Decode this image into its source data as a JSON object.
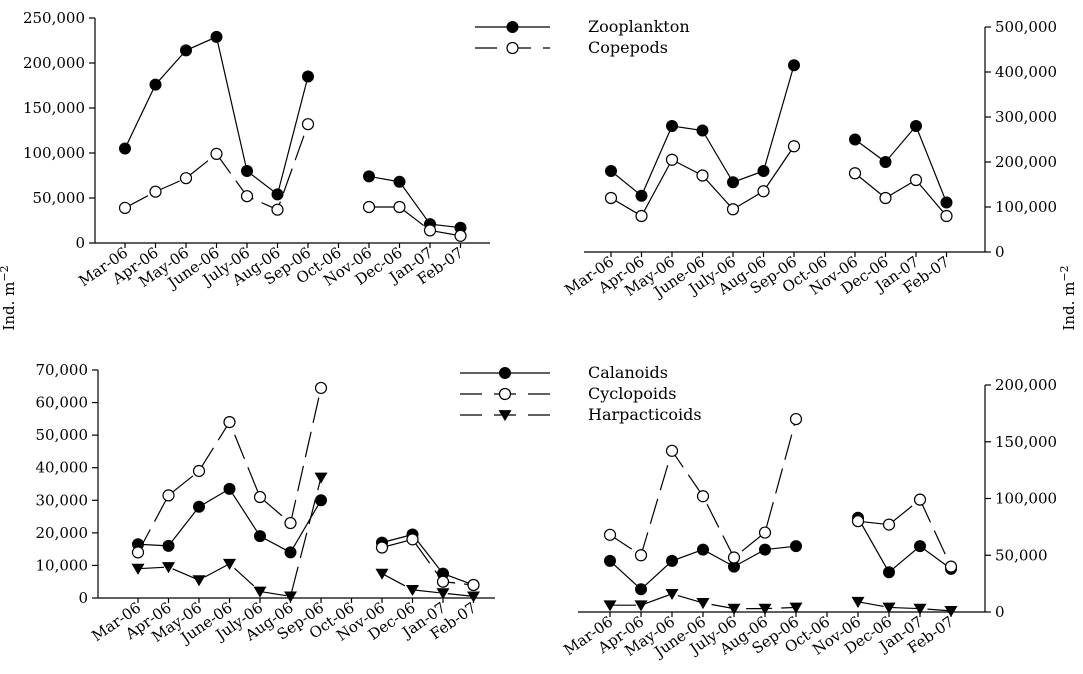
{
  "figure": {
    "y_axis_label_base": "Ind. m",
    "y_axis_label_exp": "−2"
  },
  "chart_data": [
    {
      "id": "top-left",
      "type": "line",
      "categories": [
        "Mar-06",
        "Apr-06",
        "May-06",
        "June-06",
        "July-06",
        "Aug-06",
        "Sep-06",
        "Oct-06",
        "Nov-06",
        "Dec-06",
        "Jan-07",
        "Feb-07"
      ],
      "ylim": [
        0,
        250000
      ],
      "yticks": [
        0,
        50000,
        100000,
        150000,
        200000,
        250000
      ],
      "ytick_labels": [
        "0",
        "50,000",
        "100,000",
        "150,000",
        "200,000",
        "250,000"
      ],
      "axis_side": "left",
      "legend": "top-right",
      "series": [
        {
          "name": "Zooplankton",
          "marker": "filled-circle",
          "dash": "solid",
          "values": [
            105000,
            176000,
            214000,
            229000,
            80000,
            54000,
            185000,
            null,
            74000,
            68000,
            21000,
            17000
          ]
        },
        {
          "name": "Copepods",
          "marker": "open-circle",
          "dash": "long-dash",
          "values": [
            39000,
            57000,
            72000,
            99000,
            52000,
            37000,
            132000,
            null,
            40000,
            40000,
            14000,
            8000
          ]
        }
      ]
    },
    {
      "id": "top-right",
      "type": "line",
      "categories": [
        "Mar-06",
        "Apr-06",
        "May-06",
        "June-06",
        "July-06",
        "Aug-06",
        "Sep-06",
        "Oct-06",
        "Nov-06",
        "Dec-06",
        "Jan-07",
        "Feb-07"
      ],
      "ylim": [
        0,
        500000
      ],
      "yticks": [
        0,
        100000,
        200000,
        300000,
        400000,
        500000
      ],
      "ytick_labels": [
        "0",
        "100,000",
        "200,000",
        "300,000",
        "400,000",
        "500,000"
      ],
      "axis_side": "right",
      "series": [
        {
          "name": "Zooplankton",
          "marker": "filled-circle",
          "dash": "solid",
          "values": [
            180000,
            125000,
            280000,
            270000,
            155000,
            180000,
            415000,
            null,
            250000,
            200000,
            280000,
            110000
          ]
        },
        {
          "name": "Copepods",
          "marker": "open-circle",
          "dash": "solid",
          "values": [
            120000,
            80000,
            205000,
            170000,
            95000,
            135000,
            235000,
            null,
            175000,
            120000,
            160000,
            80000
          ]
        }
      ]
    },
    {
      "id": "bottom-left",
      "type": "line",
      "categories": [
        "Mar-06",
        "Apr-06",
        "May-06",
        "June-06",
        "July-06",
        "Aug-06",
        "Sep-06",
        "Oct-06",
        "Nov-06",
        "Dec-06",
        "Jan-07",
        "Feb-07"
      ],
      "ylim": [
        0,
        70000
      ],
      "yticks": [
        0,
        10000,
        20000,
        30000,
        40000,
        50000,
        60000,
        70000
      ],
      "ytick_labels": [
        "0",
        "10,000",
        "20,000",
        "30,000",
        "40,000",
        "50,000",
        "60,000",
        "70,000"
      ],
      "axis_side": "left",
      "legend": "top-right",
      "series": [
        {
          "name": "Calanoids",
          "marker": "filled-circle",
          "dash": "solid",
          "values": [
            16500,
            16000,
            28000,
            33500,
            19000,
            14000,
            30000,
            null,
            17000,
            19500,
            7500,
            4000
          ]
        },
        {
          "name": "Cyclopoids",
          "marker": "open-circle",
          "dash": "long-dash",
          "values": [
            14000,
            31500,
            39000,
            54000,
            31000,
            23000,
            64500,
            null,
            15500,
            18000,
            5000,
            4000
          ]
        },
        {
          "name": "Harpacticoids",
          "marker": "filled-triangle-down",
          "dash": "long-dash",
          "values": [
            9000,
            9500,
            5500,
            10500,
            2000,
            500,
            37000,
            null,
            7500,
            2500,
            1500,
            500
          ]
        }
      ]
    },
    {
      "id": "bottom-right",
      "type": "line",
      "categories": [
        "Mar-06",
        "Apr-06",
        "May-06",
        "June-06",
        "July-06",
        "Aug-06",
        "Sep-06",
        "Oct-06",
        "Nov-06",
        "Dec-06",
        "Jan-07",
        "Feb-07"
      ],
      "ylim": [
        0,
        200000
      ],
      "yticks": [
        0,
        50000,
        100000,
        150000,
        200000
      ],
      "ytick_labels": [
        "0",
        "50,000",
        "100,000",
        "150,000",
        "200,000"
      ],
      "axis_side": "right",
      "series": [
        {
          "name": "Calanoids",
          "marker": "filled-circle",
          "dash": "solid",
          "values": [
            45000,
            20000,
            45000,
            55000,
            40000,
            55000,
            58000,
            null,
            83000,
            35000,
            58000,
            38000
          ]
        },
        {
          "name": "Cyclopoids",
          "marker": "open-circle",
          "dash": "long-dash",
          "values": [
            68000,
            50000,
            142000,
            102000,
            48000,
            70000,
            170000,
            null,
            80000,
            77000,
            99000,
            40000
          ]
        },
        {
          "name": "Harpacticoids",
          "marker": "filled-triangle-down",
          "dash": "long-dash",
          "values": [
            6000,
            6000,
            16000,
            8000,
            3000,
            3000,
            4000,
            null,
            9000,
            4000,
            3000,
            1000
          ]
        }
      ]
    }
  ]
}
